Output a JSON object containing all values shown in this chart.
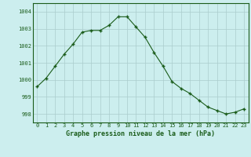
{
  "x": [
    0,
    1,
    2,
    3,
    4,
    5,
    6,
    7,
    8,
    9,
    10,
    11,
    12,
    13,
    14,
    15,
    16,
    17,
    18,
    19,
    20,
    21,
    22,
    23
  ],
  "y": [
    999.6,
    1000.1,
    1000.8,
    1001.5,
    1002.1,
    1002.8,
    1002.9,
    1002.9,
    1003.2,
    1003.7,
    1003.7,
    1003.1,
    1002.5,
    1001.6,
    1000.8,
    999.9,
    999.5,
    999.2,
    998.8,
    998.4,
    998.2,
    998.0,
    998.1,
    998.3
  ],
  "xlabel": "Graphe pression niveau de la mer (hPa)",
  "yticks": [
    998,
    999,
    1000,
    1001,
    1002,
    1003,
    1004
  ],
  "xticks": [
    0,
    1,
    2,
    3,
    4,
    5,
    6,
    7,
    8,
    9,
    10,
    11,
    12,
    13,
    14,
    15,
    16,
    17,
    18,
    19,
    20,
    21,
    22,
    23
  ],
  "ylim": [
    997.5,
    1004.5
  ],
  "xlim": [
    -0.5,
    23.5
  ],
  "line_color": "#1a5c1a",
  "marker": "+",
  "bg_color": "#cceeee",
  "grid_color": "#aacccc",
  "text_color": "#1a5c1a",
  "tick_color": "#1a5c1a"
}
